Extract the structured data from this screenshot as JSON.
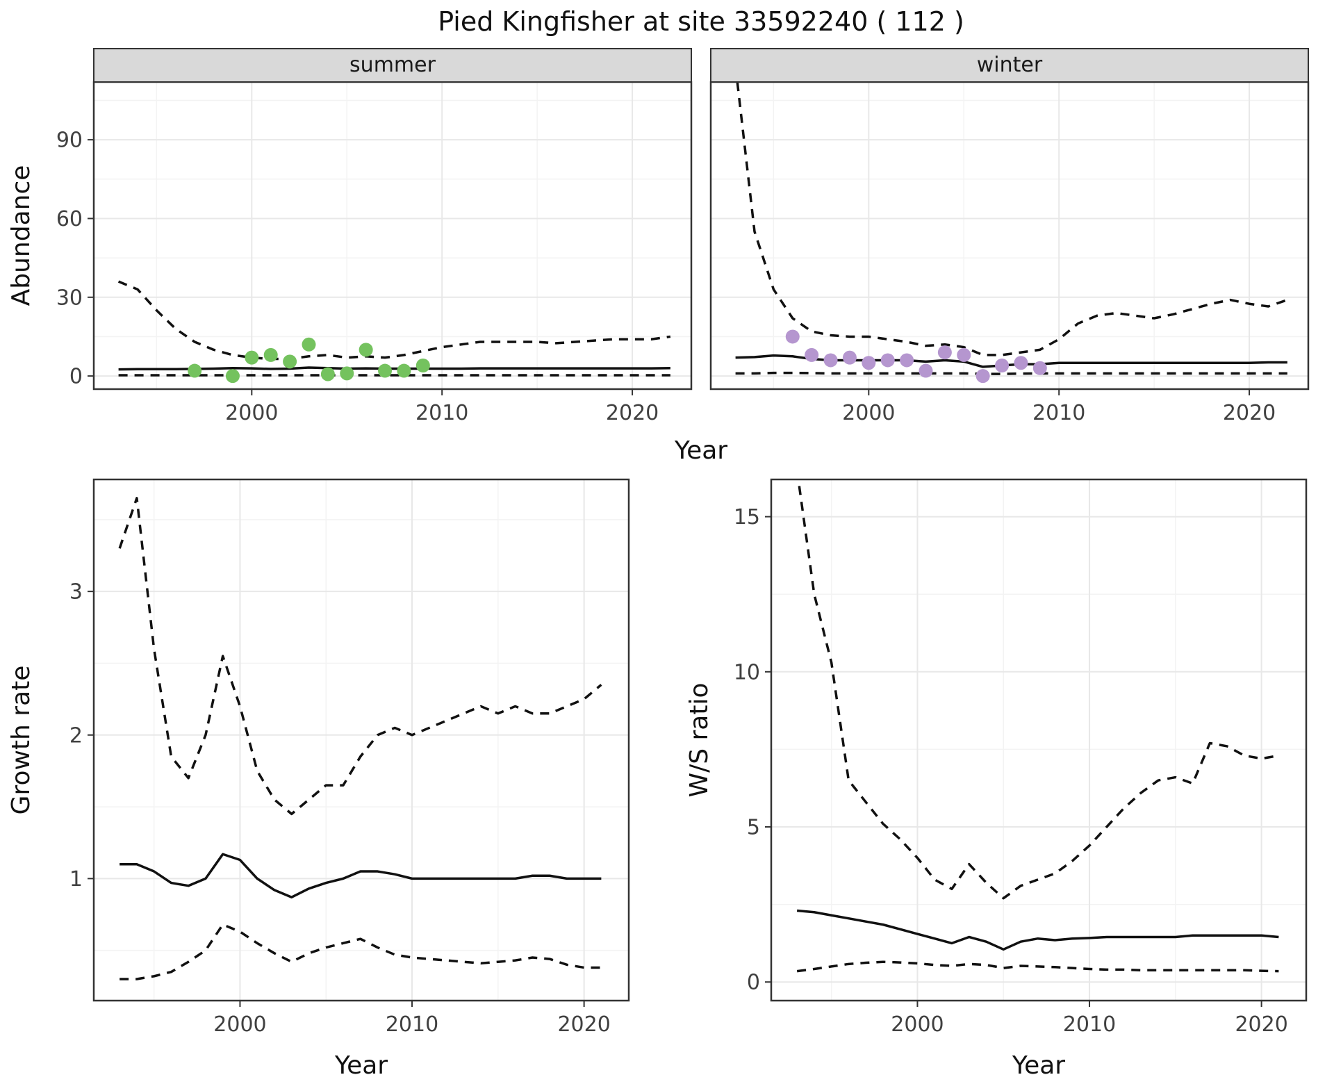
{
  "title": "Pied Kingfisher at site 33592240 ( 112 )",
  "axes": {
    "abundance_ylabel": "Abundance",
    "top_xlabel": "Year",
    "growth_ylabel": "Growth rate",
    "growth_xlabel": "Year",
    "ratio_ylabel": "W/S ratio",
    "ratio_xlabel": "Year"
  },
  "facets": [
    {
      "label": "summer"
    },
    {
      "label": "winter"
    }
  ],
  "colors": {
    "summer_points": "#74c25e",
    "winter_points": "#b596cf",
    "line": "#111111",
    "strip_background": "#d9d9d9",
    "panel_border": "#333333",
    "grid_major": "#e8e8e8",
    "grid_minor": "#f3f3f3",
    "tick": "#333333"
  },
  "chart_data": [
    {
      "id": "abundance-summer",
      "type": "line",
      "facet": "summer",
      "title": "",
      "xlabel": "Year",
      "ylabel": "Abundance",
      "xlim": [
        1991.7,
        2023.1
      ],
      "ylim": [
        -5,
        112
      ],
      "xticks": [
        2000,
        2010,
        2020
      ],
      "yticks": [
        0,
        30,
        60,
        90
      ],
      "x": [
        1993,
        1994,
        1995,
        1996,
        1997,
        1998,
        1999,
        2000,
        2001,
        2002,
        2003,
        2004,
        2005,
        2006,
        2007,
        2008,
        2009,
        2010,
        2011,
        2012,
        2013,
        2014,
        2015,
        2016,
        2017,
        2018,
        2019,
        2020,
        2021,
        2022
      ],
      "series": [
        {
          "name": "upper-ci",
          "style": "dashed",
          "values": [
            36,
            33,
            25,
            18,
            13,
            10,
            8,
            7,
            6.5,
            6.5,
            7.5,
            8,
            7,
            7.5,
            7,
            8,
            9.5,
            11,
            12,
            13,
            13,
            13,
            13,
            12.5,
            13,
            13.5,
            14,
            14,
            14,
            15
          ]
        },
        {
          "name": "median",
          "style": "solid",
          "values": [
            2.5,
            2.6,
            2.6,
            2.6,
            2.7,
            2.8,
            3,
            2.9,
            2.7,
            2.8,
            3.2,
            3,
            2.8,
            2.9,
            2.8,
            2.8,
            2.8,
            2.8,
            2.8,
            2.9,
            2.9,
            2.9,
            2.9,
            2.9,
            2.9,
            2.9,
            2.9,
            2.9,
            2.9,
            3
          ]
        },
        {
          "name": "lower-ci",
          "style": "dashed",
          "values": [
            0.3,
            0.3,
            0.3,
            0.3,
            0.3,
            0.3,
            0.3,
            0.3,
            0.3,
            0.3,
            0.3,
            0.3,
            0.3,
            0.3,
            0.3,
            0.3,
            0.3,
            0.3,
            0.3,
            0.3,
            0.3,
            0.3,
            0.3,
            0.3,
            0.3,
            0.3,
            0.3,
            0.3,
            0.3,
            0.3
          ]
        }
      ],
      "points": {
        "name": "summer-observations",
        "color": "#74c25e",
        "x": [
          1997,
          1999,
          2000,
          2001,
          2002,
          2003,
          2004,
          2005,
          2006,
          2007,
          2008,
          2009
        ],
        "y": [
          2,
          0,
          7,
          8,
          5.5,
          12,
          0.7,
          1,
          10,
          2,
          2,
          4
        ]
      }
    },
    {
      "id": "abundance-winter",
      "type": "line",
      "facet": "winter",
      "title": "",
      "xlabel": "Year",
      "ylabel": "Abundance",
      "xlim": [
        1991.7,
        2023.1
      ],
      "ylim": [
        -5,
        112
      ],
      "xticks": [
        2000,
        2010,
        2020
      ],
      "yticks": [
        0,
        30,
        60,
        90
      ],
      "x": [
        1993,
        1994,
        1995,
        1996,
        1997,
        1998,
        1999,
        2000,
        2001,
        2002,
        2003,
        2004,
        2005,
        2006,
        2007,
        2008,
        2009,
        2010,
        2011,
        2012,
        2013,
        2014,
        2015,
        2016,
        2017,
        2018,
        2019,
        2020,
        2021,
        2022
      ],
      "series": [
        {
          "name": "upper-ci",
          "style": "dashed",
          "values": [
            118,
            55,
            33,
            22,
            17,
            15.5,
            15,
            15,
            14,
            13,
            11.5,
            12,
            11,
            8,
            8,
            9,
            10,
            14,
            20,
            23,
            24,
            23,
            22,
            23.5,
            25.5,
            27.5,
            29,
            27.5,
            26.5,
            29
          ]
        },
        {
          "name": "median",
          "style": "solid",
          "values": [
            7,
            7.2,
            7.8,
            7.5,
            6.5,
            6,
            6,
            6,
            6,
            6,
            5.5,
            6,
            5.5,
            3.5,
            4,
            4.5,
            4.5,
            5,
            5,
            5,
            5,
            5,
            5,
            5,
            5,
            5,
            5,
            5,
            5.2,
            5.2
          ]
        },
        {
          "name": "lower-ci",
          "style": "dashed",
          "values": [
            1,
            1,
            1.2,
            1.2,
            1.1,
            1,
            1,
            1,
            1,
            1,
            1,
            1,
            1,
            0.8,
            0.8,
            0.9,
            1,
            1,
            1,
            1,
            1,
            1,
            1,
            1,
            1,
            1,
            1,
            1,
            1,
            1
          ]
        }
      ],
      "points": {
        "name": "winter-observations",
        "color": "#b596cf",
        "x": [
          1996,
          1997,
          1998,
          1999,
          2000,
          2001,
          2002,
          2003,
          2004,
          2005,
          2006,
          2007,
          2008,
          2009
        ],
        "y": [
          15,
          8,
          6,
          7,
          5,
          6,
          6,
          2,
          9,
          8,
          0,
          4,
          5,
          3
        ]
      }
    },
    {
      "id": "growth-rate",
      "type": "line",
      "facet": "",
      "title": "",
      "xlabel": "Year",
      "ylabel": "Growth rate",
      "xlim": [
        1991.5,
        2022.6
      ],
      "ylim": [
        0.15,
        3.78
      ],
      "xticks": [
        2000,
        2010,
        2020
      ],
      "yticks": [
        1,
        2,
        3
      ],
      "x": [
        1993,
        1994,
        1995,
        1996,
        1997,
        1998,
        1999,
        2000,
        2001,
        2002,
        2003,
        2004,
        2005,
        2006,
        2007,
        2008,
        2009,
        2010,
        2011,
        2012,
        2013,
        2014,
        2015,
        2016,
        2017,
        2018,
        2019,
        2020,
        2021
      ],
      "series": [
        {
          "name": "upper-ci",
          "style": "dashed",
          "values": [
            3.3,
            3.65,
            2.6,
            1.85,
            1.7,
            2.0,
            2.55,
            2.2,
            1.75,
            1.55,
            1.45,
            1.55,
            1.65,
            1.65,
            1.85,
            2.0,
            2.05,
            2.0,
            2.05,
            2.1,
            2.15,
            2.2,
            2.15,
            2.2,
            2.15,
            2.15,
            2.2,
            2.25,
            2.35
          ]
        },
        {
          "name": "median",
          "style": "solid",
          "values": [
            1.1,
            1.1,
            1.05,
            0.97,
            0.95,
            1.0,
            1.17,
            1.13,
            1.0,
            0.92,
            0.87,
            0.93,
            0.97,
            1.0,
            1.05,
            1.05,
            1.03,
            1.0,
            1.0,
            1.0,
            1.0,
            1.0,
            1.0,
            1.0,
            1.02,
            1.02,
            1.0,
            1.0,
            1.0
          ]
        },
        {
          "name": "lower-ci",
          "style": "dashed",
          "values": [
            0.3,
            0.3,
            0.32,
            0.35,
            0.42,
            0.5,
            0.68,
            0.63,
            0.55,
            0.48,
            0.42,
            0.48,
            0.52,
            0.55,
            0.58,
            0.52,
            0.47,
            0.45,
            0.44,
            0.43,
            0.42,
            0.41,
            0.42,
            0.43,
            0.45,
            0.44,
            0.4,
            0.38,
            0.38
          ]
        }
      ]
    },
    {
      "id": "ws-ratio",
      "type": "line",
      "facet": "",
      "title": "",
      "xlabel": "Year",
      "ylabel": "W/S ratio",
      "xlim": [
        1991.5,
        2022.6
      ],
      "ylim": [
        -0.6,
        16.2
      ],
      "xticks": [
        2000,
        2010,
        2020
      ],
      "yticks": [
        0,
        5,
        10,
        15
      ],
      "x": [
        1993,
        1994,
        1995,
        1996,
        1997,
        1998,
        1999,
        2000,
        2001,
        2002,
        2003,
        2004,
        2005,
        2006,
        2007,
        2008,
        2009,
        2010,
        2011,
        2012,
        2013,
        2014,
        2015,
        2016,
        2017,
        2018,
        2019,
        2020,
        2021
      ],
      "series": [
        {
          "name": "upper-ci",
          "style": "dashed",
          "values": [
            16.5,
            12.5,
            10.3,
            6.5,
            5.8,
            5.1,
            4.6,
            4.0,
            3.3,
            3.0,
            3.8,
            3.2,
            2.7,
            3.1,
            3.3,
            3.5,
            3.9,
            4.4,
            5.0,
            5.6,
            6.1,
            6.5,
            6.6,
            6.4,
            7.7,
            7.6,
            7.3,
            7.2,
            7.3
          ]
        },
        {
          "name": "median",
          "style": "solid",
          "values": [
            2.3,
            2.25,
            2.15,
            2.05,
            1.95,
            1.85,
            1.7,
            1.55,
            1.4,
            1.25,
            1.45,
            1.3,
            1.05,
            1.3,
            1.4,
            1.35,
            1.4,
            1.42,
            1.45,
            1.45,
            1.45,
            1.45,
            1.45,
            1.5,
            1.5,
            1.5,
            1.5,
            1.5,
            1.45
          ]
        },
        {
          "name": "lower-ci",
          "style": "dashed",
          "values": [
            0.35,
            0.42,
            0.5,
            0.58,
            0.62,
            0.65,
            0.63,
            0.6,
            0.55,
            0.52,
            0.58,
            0.55,
            0.45,
            0.52,
            0.5,
            0.48,
            0.45,
            0.42,
            0.4,
            0.4,
            0.38,
            0.38,
            0.38,
            0.38,
            0.38,
            0.38,
            0.38,
            0.36,
            0.35
          ]
        }
      ]
    }
  ]
}
